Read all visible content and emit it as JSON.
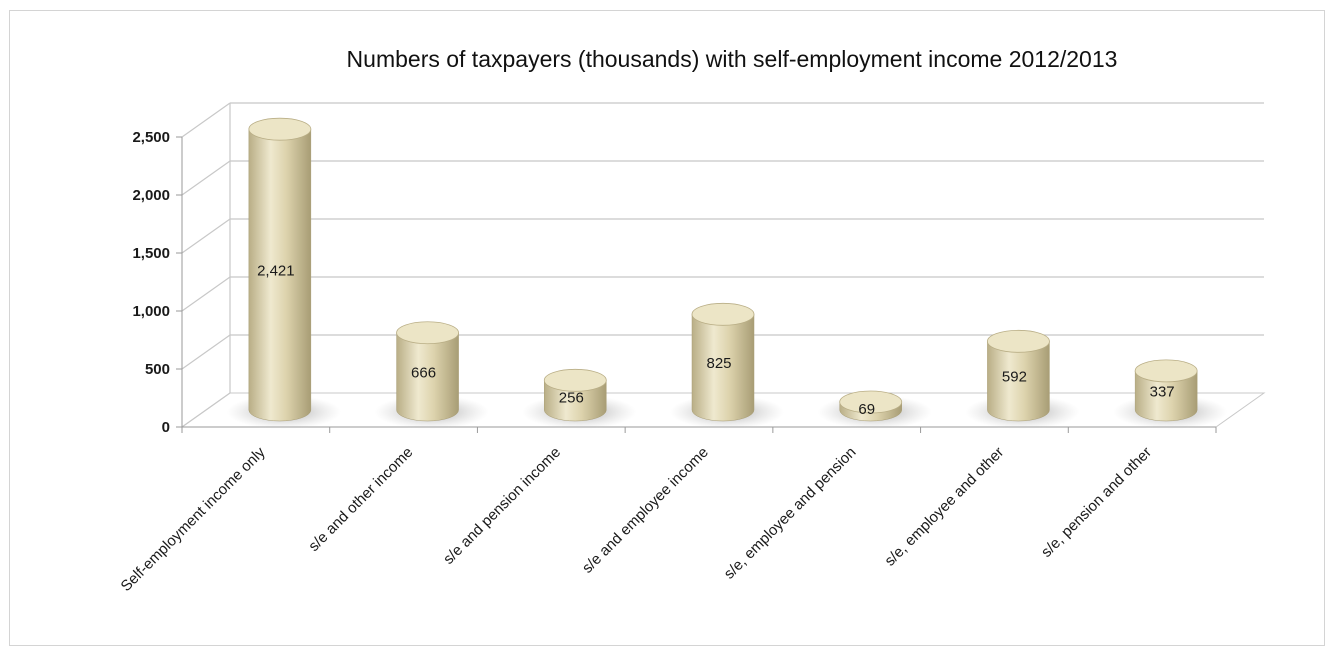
{
  "chart_data": {
    "type": "bar",
    "style": "3d-cylinder",
    "title": "Numbers of taxpayers (thousands) with self-employment income 2012/2013",
    "xlabel": "",
    "ylabel": "",
    "categories": [
      "Self-employment income only",
      "s/e and other income",
      "s/e and pension income",
      "s/e and employee income",
      "s/e, employee and pension",
      "s/e, employee and other",
      "s/e, pension and other"
    ],
    "values": [
      2421,
      666,
      256,
      825,
      69,
      592,
      337
    ],
    "data_labels": [
      "2,421",
      "666",
      "256",
      "825",
      "69",
      "592",
      "337"
    ],
    "ylim": [
      0,
      2500
    ],
    "yticks": [
      0,
      500,
      1000,
      1500,
      2000,
      2500
    ],
    "ytick_labels": [
      "0",
      "500",
      "1,000",
      "1,500",
      "2,000",
      "2,500"
    ],
    "grid": true,
    "legend": "none",
    "bar_color": "#d9d0a8",
    "grid_color": "#c8c8c8"
  }
}
